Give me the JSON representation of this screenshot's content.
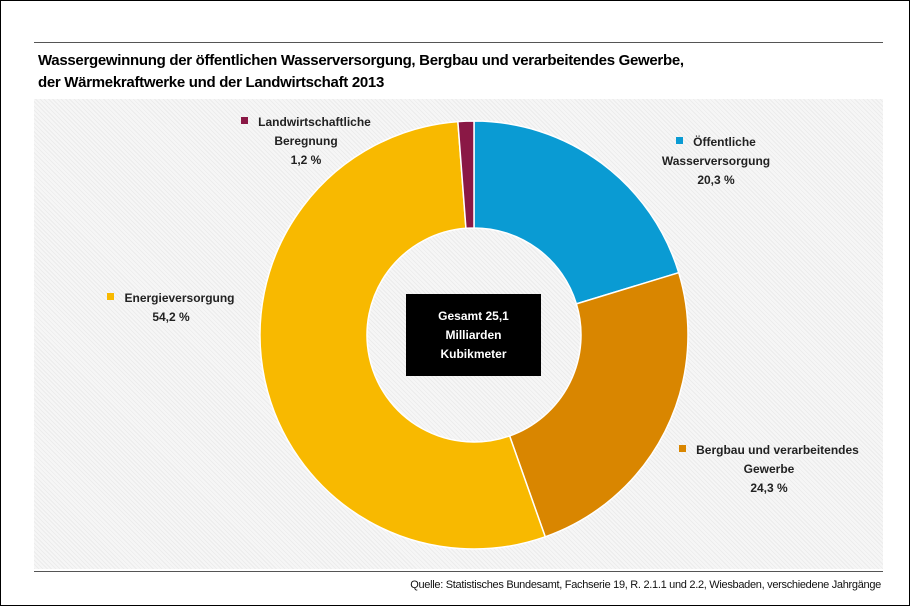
{
  "chart_data": {
    "type": "donut",
    "title": [
      "Wassergewinnung der öffentlichen Wasserversorgung, Bergbau und verarbeitendes Gewerbe,",
      "der Wärmekraftwerke und der Landwirtschaft 2013"
    ],
    "categories": [
      "Öffentliche Wasserversorgung",
      "Bergbau und verarbeitendes Gewerbe",
      "Energieversorgung",
      "Landwirtschaftliche Beregnung"
    ],
    "values": [
      20.3,
      24.3,
      54.2,
      1.2
    ],
    "value_labels": [
      "20,3 %",
      "24,3 %",
      "54,2 %",
      "1,2 %"
    ],
    "colors": [
      "#0a9bd3",
      "#d98600",
      "#f8b900",
      "#8a1845"
    ],
    "center_label": "Gesamt 25,1 Milliarden Kubikmeter",
    "source": "Quelle: Statistisches Bundesamt, Fachserie 19, R. 2.1.1 und 2.2, Wiesbaden, verschiedene Jahrgänge"
  }
}
